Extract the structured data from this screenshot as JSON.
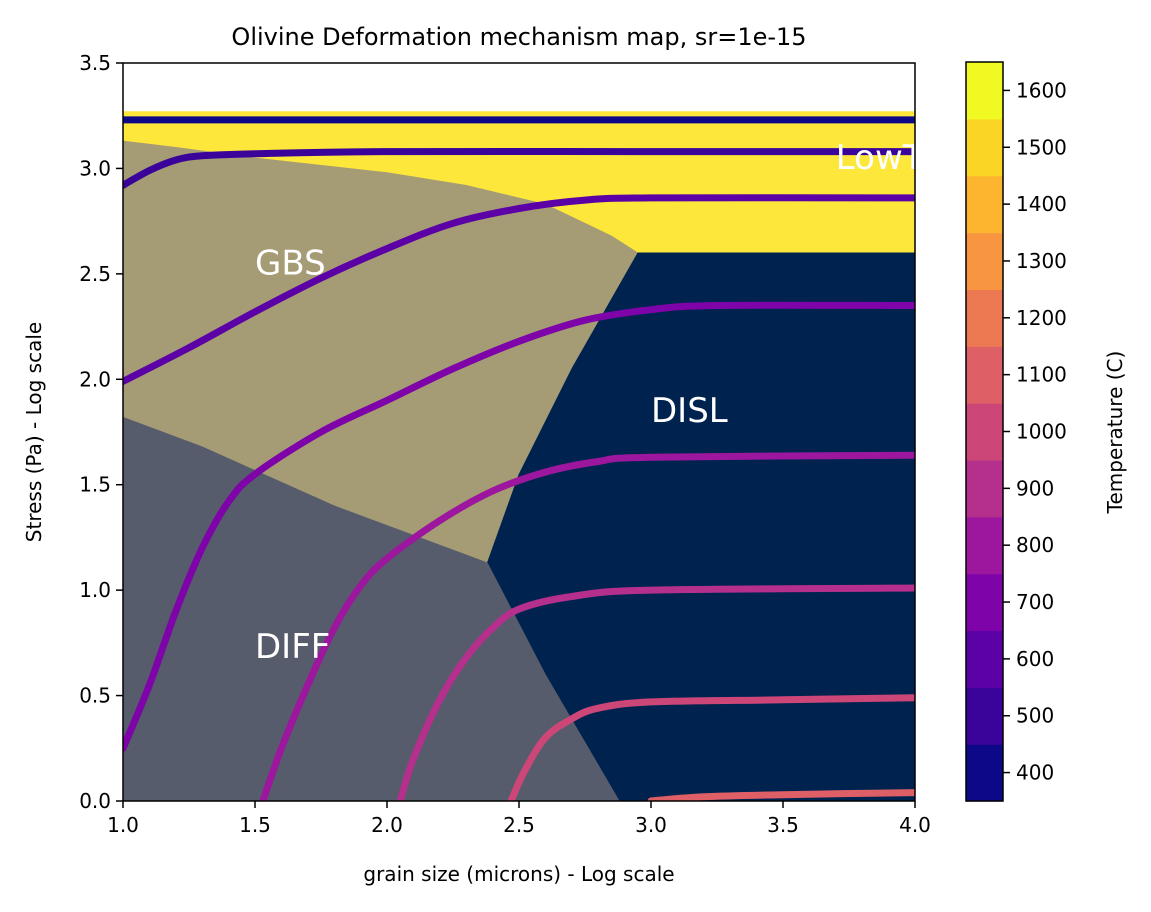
{
  "chart_data": {
    "type": "area",
    "title": "Olivine Deformation mechanism map, sr=1e-15",
    "xlabel": "grain size (microns) - Log scale",
    "ylabel": "Stress (Pa) - Log scale",
    "xlim": [
      1.0,
      4.0
    ],
    "ylim": [
      0.0,
      3.5
    ],
    "x_ticks": [
      "1.0",
      "1.5",
      "2.0",
      "2.5",
      "3.0",
      "3.5",
      "4.0"
    ],
    "y_ticks": [
      "0.0",
      "0.5",
      "1.0",
      "1.5",
      "2.0",
      "2.5",
      "3.0",
      "3.5"
    ],
    "grid": false,
    "regions": [
      {
        "label": "LowT",
        "color": "#fde73b",
        "label_at": [
          3.7,
          3.05
        ],
        "polygon": [
          [
            1.0,
            3.27
          ],
          [
            4.0,
            3.27
          ],
          [
            4.0,
            2.6
          ],
          [
            2.95,
            2.6
          ],
          [
            2.85,
            2.68
          ],
          [
            2.6,
            2.83
          ],
          [
            2.3,
            2.92
          ],
          [
            2.0,
            2.98
          ],
          [
            1.5,
            3.05
          ],
          [
            1.2,
            3.1
          ],
          [
            1.0,
            3.13
          ]
        ]
      },
      {
        "label": "GBS",
        "color": "#a59c75",
        "label_at": [
          1.5,
          2.55
        ],
        "polygon": [
          [
            1.0,
            3.13
          ],
          [
            1.2,
            3.1
          ],
          [
            1.5,
            3.05
          ],
          [
            2.0,
            2.98
          ],
          [
            2.3,
            2.92
          ],
          [
            2.6,
            2.83
          ],
          [
            2.85,
            2.68
          ],
          [
            2.95,
            2.6
          ],
          [
            2.7,
            2.05
          ],
          [
            2.5,
            1.55
          ],
          [
            2.38,
            1.13
          ],
          [
            1.8,
            1.4
          ],
          [
            1.3,
            1.68
          ],
          [
            1.0,
            1.82
          ]
        ]
      },
      {
        "label": "DISL",
        "color": "#00224e",
        "label_at": [
          3.0,
          1.85
        ],
        "polygon": [
          [
            2.95,
            2.6
          ],
          [
            4.0,
            2.6
          ],
          [
            4.0,
            0.0
          ],
          [
            2.88,
            0.0
          ],
          [
            2.6,
            0.6
          ],
          [
            2.38,
            1.13
          ],
          [
            2.5,
            1.55
          ],
          [
            2.7,
            2.05
          ]
        ]
      },
      {
        "label": "DIFF",
        "color": "#565c6c",
        "label_at": [
          1.5,
          0.73
        ],
        "polygon": [
          [
            1.0,
            1.82
          ],
          [
            1.3,
            1.68
          ],
          [
            1.8,
            1.4
          ],
          [
            2.38,
            1.13
          ],
          [
            2.6,
            0.6
          ],
          [
            2.88,
            0.0
          ],
          [
            1.0,
            0.0
          ]
        ]
      }
    ],
    "series": [
      {
        "temperature": 400,
        "color": "#0d0887",
        "points": [
          [
            1.0,
            3.23
          ],
          [
            4.0,
            3.23
          ]
        ]
      },
      {
        "temperature": 500,
        "color": "#3a049a",
        "points": [
          [
            1.0,
            2.92
          ],
          [
            1.1,
            2.99
          ],
          [
            1.2,
            3.04
          ],
          [
            1.3,
            3.06
          ],
          [
            1.5,
            3.07
          ],
          [
            2.0,
            3.08
          ],
          [
            3.0,
            3.08
          ],
          [
            4.0,
            3.08
          ]
        ]
      },
      {
        "temperature": 600,
        "color": "#5c01a6",
        "points": [
          [
            1.0,
            1.99
          ],
          [
            1.25,
            2.15
          ],
          [
            1.5,
            2.32
          ],
          [
            1.75,
            2.48
          ],
          [
            2.0,
            2.62
          ],
          [
            2.25,
            2.74
          ],
          [
            2.5,
            2.81
          ],
          [
            2.75,
            2.85
          ],
          [
            3.0,
            2.86
          ],
          [
            4.0,
            2.86
          ]
        ]
      },
      {
        "temperature": 700,
        "color": "#7e03a8",
        "points": [
          [
            1.0,
            0.25
          ],
          [
            1.1,
            0.55
          ],
          [
            1.2,
            0.9
          ],
          [
            1.3,
            1.2
          ],
          [
            1.4,
            1.42
          ],
          [
            1.5,
            1.55
          ],
          [
            1.75,
            1.75
          ],
          [
            2.0,
            1.9
          ],
          [
            2.25,
            2.05
          ],
          [
            2.5,
            2.18
          ],
          [
            2.75,
            2.28
          ],
          [
            3.0,
            2.33
          ],
          [
            3.25,
            2.35
          ],
          [
            4.0,
            2.35
          ]
        ]
      },
      {
        "temperature": 800,
        "color": "#9c179e",
        "points": [
          [
            1.53,
            0.0
          ],
          [
            1.6,
            0.25
          ],
          [
            1.7,
            0.55
          ],
          [
            1.8,
            0.82
          ],
          [
            1.9,
            1.02
          ],
          [
            2.0,
            1.15
          ],
          [
            2.2,
            1.33
          ],
          [
            2.4,
            1.47
          ],
          [
            2.6,
            1.56
          ],
          [
            2.8,
            1.61
          ],
          [
            3.0,
            1.63
          ],
          [
            4.0,
            1.64
          ]
        ]
      },
      {
        "temperature": 900,
        "color": "#b52f8c",
        "points": [
          [
            2.05,
            0.0
          ],
          [
            2.1,
            0.2
          ],
          [
            2.2,
            0.48
          ],
          [
            2.3,
            0.68
          ],
          [
            2.4,
            0.82
          ],
          [
            2.5,
            0.91
          ],
          [
            2.7,
            0.97
          ],
          [
            3.0,
            1.0
          ],
          [
            4.0,
            1.01
          ]
        ]
      },
      {
        "temperature": 1000,
        "color": "#cc4778",
        "points": [
          [
            2.47,
            0.0
          ],
          [
            2.52,
            0.14
          ],
          [
            2.6,
            0.3
          ],
          [
            2.7,
            0.39
          ],
          [
            2.8,
            0.44
          ],
          [
            3.0,
            0.47
          ],
          [
            3.5,
            0.48
          ],
          [
            4.0,
            0.49
          ]
        ]
      },
      {
        "temperature": 1100,
        "color": "#de5f65",
        "points": [
          [
            3.0,
            0.0
          ],
          [
            3.2,
            0.02
          ],
          [
            3.5,
            0.03
          ],
          [
            4.0,
            0.04
          ]
        ]
      }
    ],
    "colorbar": {
      "label": "Temperature (C)",
      "ticks": [
        "400",
        "500",
        "600",
        "700",
        "800",
        "900",
        "1000",
        "1100",
        "1200",
        "1300",
        "1400",
        "1500",
        "1600"
      ],
      "range": [
        350,
        1650
      ],
      "bands": [
        "#0d0887",
        "#3a049a",
        "#5c01a6",
        "#7e03a8",
        "#9c179e",
        "#b52f8c",
        "#cc4778",
        "#de5f65",
        "#ed7953",
        "#f89540",
        "#fdb42f",
        "#fbd524",
        "#f0f921"
      ]
    }
  }
}
